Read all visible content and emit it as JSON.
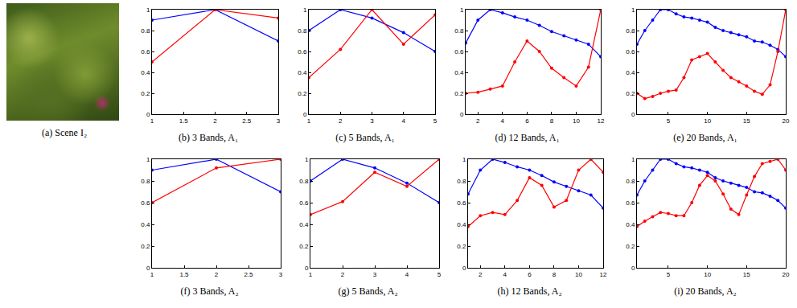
{
  "image": {
    "title": "(a) Scene I₂"
  },
  "chart_data": [
    {
      "type": "line",
      "title": "(b) 3 Bands, A₁",
      "x": [
        1,
        2,
        3
      ],
      "xlim": [
        1,
        3
      ],
      "xticks": [
        1,
        1.5,
        2,
        2.5,
        3
      ],
      "ylim": [
        0,
        1
      ],
      "yticks": [
        0,
        0.2,
        0.4,
        0.6,
        0.8,
        1
      ],
      "grid": false,
      "marker": "dot",
      "series": [
        {
          "color": "#0000ff",
          "values": [
            0.9,
            1.0,
            0.7
          ]
        },
        {
          "color": "#ff0000",
          "values": [
            0.5,
            1.0,
            0.92
          ]
        }
      ]
    },
    {
      "type": "line",
      "title": "(c) 5 Bands, A₁",
      "x": [
        1,
        2,
        3,
        4,
        5
      ],
      "xlim": [
        1,
        5
      ],
      "xticks": [
        1,
        2,
        3,
        4,
        5
      ],
      "ylim": [
        0,
        1
      ],
      "yticks": [
        0,
        0.2,
        0.4,
        0.6,
        0.8,
        1
      ],
      "grid": false,
      "marker": "dot",
      "series": [
        {
          "color": "#0000ff",
          "values": [
            0.8,
            1.0,
            0.92,
            0.78,
            0.6
          ]
        },
        {
          "color": "#ff0000",
          "values": [
            0.35,
            0.62,
            1.0,
            0.67,
            0.95
          ]
        }
      ]
    },
    {
      "type": "line",
      "title": "(d) 12 Bands, A₁",
      "x": [
        1,
        2,
        3,
        4,
        5,
        6,
        7,
        8,
        9,
        10,
        11,
        12
      ],
      "xlim": [
        1,
        12
      ],
      "xticks": [
        2,
        4,
        6,
        8,
        10,
        12
      ],
      "ylim": [
        0,
        1
      ],
      "yticks": [
        0,
        0.2,
        0.4,
        0.6,
        0.8,
        1
      ],
      "grid": false,
      "marker": "dot",
      "series": [
        {
          "color": "#0000ff",
          "values": [
            0.68,
            0.9,
            1.0,
            0.97,
            0.93,
            0.9,
            0.85,
            0.79,
            0.75,
            0.71,
            0.67,
            0.55
          ]
        },
        {
          "color": "#ff0000",
          "values": [
            0.2,
            0.21,
            0.24,
            0.27,
            0.5,
            0.7,
            0.6,
            0.44,
            0.35,
            0.27,
            0.45,
            1.0
          ]
        }
      ]
    },
    {
      "type": "line",
      "title": "(e) 20 Bands, A₁",
      "x": [
        1,
        2,
        3,
        4,
        5,
        6,
        7,
        8,
        9,
        10,
        11,
        12,
        13,
        14,
        15,
        16,
        17,
        18,
        19,
        20
      ],
      "xlim": [
        1,
        20
      ],
      "xticks": [
        5,
        10,
        15,
        20
      ],
      "ylim": [
        0,
        1
      ],
      "yticks": [
        0,
        0.2,
        0.4,
        0.6,
        0.8,
        1
      ],
      "grid": false,
      "marker": "dot",
      "series": [
        {
          "color": "#0000ff",
          "values": [
            0.67,
            0.8,
            0.9,
            1.0,
            1.0,
            0.96,
            0.93,
            0.92,
            0.9,
            0.88,
            0.83,
            0.8,
            0.78,
            0.76,
            0.74,
            0.7,
            0.69,
            0.66,
            0.62,
            0.55
          ]
        },
        {
          "color": "#ff0000",
          "values": [
            0.2,
            0.15,
            0.17,
            0.2,
            0.22,
            0.23,
            0.35,
            0.52,
            0.55,
            0.58,
            0.5,
            0.42,
            0.35,
            0.31,
            0.27,
            0.22,
            0.19,
            0.28,
            0.6,
            1.0
          ]
        }
      ]
    },
    {
      "type": "line",
      "title": "(f) 3 Bands, A₂",
      "x": [
        1,
        2,
        3
      ],
      "xlim": [
        1,
        3
      ],
      "xticks": [
        1,
        1.5,
        2,
        2.5,
        3
      ],
      "ylim": [
        0,
        1
      ],
      "yticks": [
        0,
        0.2,
        0.4,
        0.6,
        0.8,
        1
      ],
      "grid": false,
      "marker": "dot",
      "series": [
        {
          "color": "#0000ff",
          "values": [
            0.9,
            1.0,
            0.7
          ]
        },
        {
          "color": "#ff0000",
          "values": [
            0.6,
            0.92,
            1.0
          ]
        }
      ]
    },
    {
      "type": "line",
      "title": "(g) 5 Bands, A₂",
      "x": [
        1,
        2,
        3,
        4,
        5
      ],
      "xlim": [
        1,
        5
      ],
      "xticks": [
        1,
        2,
        3,
        4,
        5
      ],
      "ylim": [
        0,
        1
      ],
      "yticks": [
        0,
        0.2,
        0.4,
        0.6,
        0.8,
        1
      ],
      "grid": false,
      "marker": "dot",
      "series": [
        {
          "color": "#0000ff",
          "values": [
            0.8,
            1.0,
            0.92,
            0.78,
            0.6
          ]
        },
        {
          "color": "#ff0000",
          "values": [
            0.49,
            0.61,
            0.88,
            0.75,
            1.0
          ]
        }
      ]
    },
    {
      "type": "line",
      "title": "(h) 12 Bands, A₂",
      "x": [
        1,
        2,
        3,
        4,
        5,
        6,
        7,
        8,
        9,
        10,
        11,
        12
      ],
      "xlim": [
        1,
        12
      ],
      "xticks": [
        2,
        4,
        6,
        8,
        10,
        12
      ],
      "ylim": [
        0,
        1
      ],
      "yticks": [
        0,
        0.2,
        0.4,
        0.6,
        0.8,
        1
      ],
      "grid": false,
      "marker": "dot",
      "series": [
        {
          "color": "#0000ff",
          "values": [
            0.68,
            0.9,
            1.0,
            0.97,
            0.93,
            0.9,
            0.85,
            0.79,
            0.75,
            0.71,
            0.67,
            0.55
          ]
        },
        {
          "color": "#ff0000",
          "values": [
            0.38,
            0.48,
            0.51,
            0.49,
            0.62,
            0.83,
            0.76,
            0.56,
            0.62,
            0.9,
            1.0,
            0.88
          ]
        }
      ]
    },
    {
      "type": "line",
      "title": "(i) 20 Bands, A₂",
      "x": [
        1,
        2,
        3,
        4,
        5,
        6,
        7,
        8,
        9,
        10,
        11,
        12,
        13,
        14,
        15,
        16,
        17,
        18,
        19,
        20
      ],
      "xlim": [
        1,
        20
      ],
      "xticks": [
        5,
        10,
        15,
        20
      ],
      "ylim": [
        0,
        1
      ],
      "yticks": [
        0,
        0.2,
        0.4,
        0.6,
        0.8,
        1
      ],
      "grid": false,
      "marker": "dot",
      "series": [
        {
          "color": "#0000ff",
          "values": [
            0.67,
            0.8,
            0.9,
            1.0,
            1.0,
            0.96,
            0.93,
            0.92,
            0.9,
            0.88,
            0.83,
            0.8,
            0.78,
            0.76,
            0.74,
            0.7,
            0.69,
            0.66,
            0.62,
            0.55
          ]
        },
        {
          "color": "#ff0000",
          "values": [
            0.38,
            0.43,
            0.47,
            0.51,
            0.5,
            0.48,
            0.48,
            0.6,
            0.76,
            0.85,
            0.8,
            0.68,
            0.54,
            0.49,
            0.67,
            0.84,
            0.96,
            0.98,
            1.0,
            0.9
          ]
        }
      ]
    }
  ]
}
